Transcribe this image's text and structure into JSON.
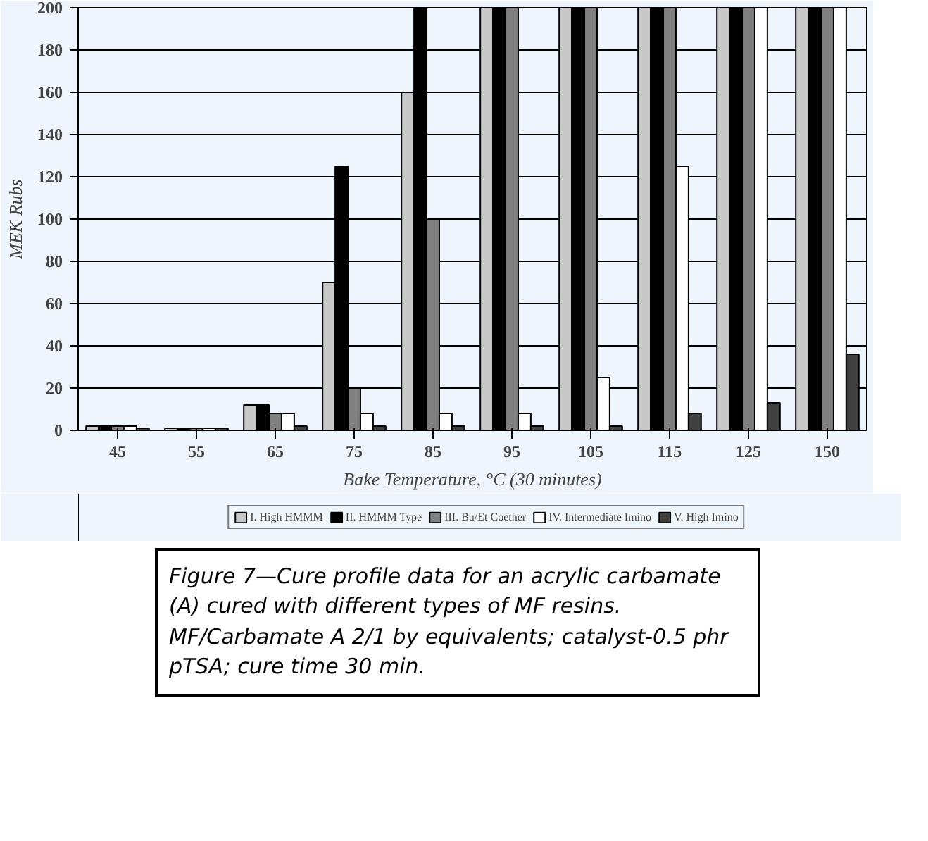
{
  "chart_data": {
    "type": "bar",
    "xlabel": "Bake Temperature, °C (30 minutes)",
    "ylabel": "MEK Rubs",
    "categories": [
      "45",
      "55",
      "65",
      "75",
      "85",
      "95",
      "105",
      "115",
      "125",
      "150"
    ],
    "series": [
      {
        "name": "I. High HMMM",
        "color": "#c8c8c8",
        "values": [
          2,
          1,
          12,
          70,
          160,
          200,
          200,
          200,
          200,
          200
        ]
      },
      {
        "name": "II. HMMM Type",
        "color": "#000000",
        "values": [
          2,
          1,
          12,
          125,
          200,
          200,
          200,
          200,
          200,
          200
        ]
      },
      {
        "name": "III. Bu/Et Coether",
        "color": "#808080",
        "values": [
          2,
          1,
          8,
          20,
          100,
          200,
          200,
          200,
          200,
          200
        ]
      },
      {
        "name": "IV. Intermediate Imino",
        "color": "#ffffff",
        "values": [
          2,
          1,
          8,
          8,
          8,
          8,
          25,
          125,
          200,
          200
        ]
      },
      {
        "name": "V. High Imino",
        "color": "#404040",
        "values": [
          1,
          1,
          2,
          2,
          2,
          2,
          2,
          8,
          13,
          36
        ]
      }
    ],
    "ylim": [
      0,
      200
    ],
    "yticks": [
      0,
      20,
      40,
      60,
      80,
      100,
      120,
      140,
      160,
      180,
      200
    ],
    "grid": "y",
    "legend": "bottom",
    "annotations": [
      "Figure 7—Cure profile data for an acrylic carbamate (A) cured with different types of MF resins. MF/Carbamate A 2/1 by equivalents; catalyst-0.5 phr pTSA; cure time 30 min."
    ]
  }
}
